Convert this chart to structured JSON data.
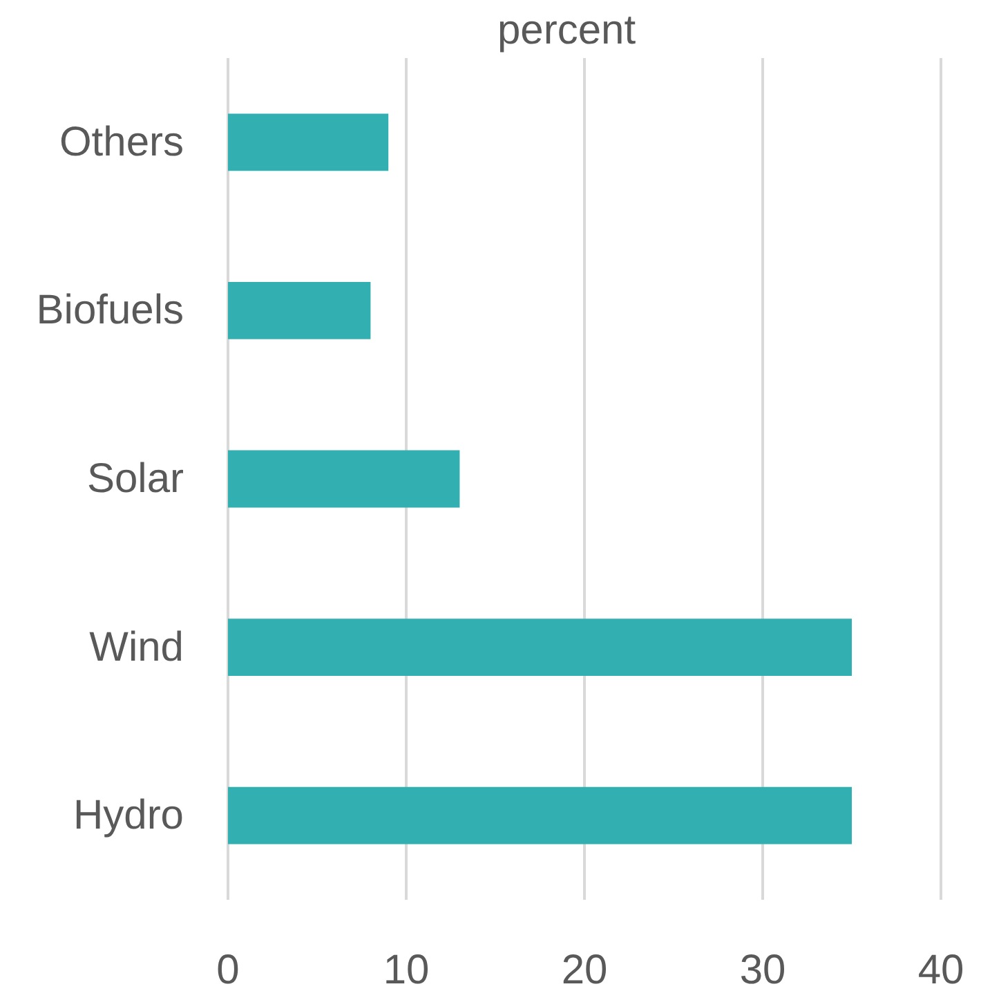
{
  "chart_data": {
    "type": "bar",
    "orientation": "horizontal",
    "title": "percent",
    "categories": [
      "Others",
      "Biofuels",
      "Solar",
      "Wind",
      "Hydro"
    ],
    "values": [
      9,
      8,
      13,
      35,
      35
    ],
    "color": "#32afb0",
    "xlim": [
      0,
      40
    ],
    "xticks": [
      0,
      10,
      20,
      30,
      40
    ],
    "grid": "x"
  }
}
